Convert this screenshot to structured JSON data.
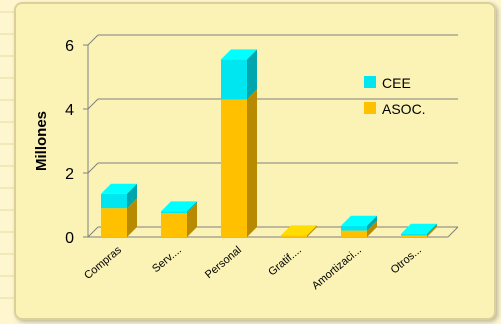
{
  "chart_data": {
    "type": "bar",
    "stacked": true,
    "three_d": true,
    "categories": [
      "Compras",
      "Serv....",
      "Personal",
      "Gratif....",
      "Amortizaci...",
      "Otros..."
    ],
    "series": [
      {
        "name": "ASOC.",
        "color": "#ffc000",
        "values": [
          0.9,
          0.75,
          4.3,
          0.05,
          0.2,
          0.05
        ]
      },
      {
        "name": "CEE",
        "color": "#00e6f0",
        "values": [
          0.45,
          0.05,
          1.25,
          0.0,
          0.15,
          0.05
        ]
      }
    ],
    "ylabel": "Millones",
    "ylim": [
      0,
      6
    ],
    "yticks": [
      0,
      2,
      4,
      6
    ],
    "grid": true,
    "legend_position": "right"
  }
}
